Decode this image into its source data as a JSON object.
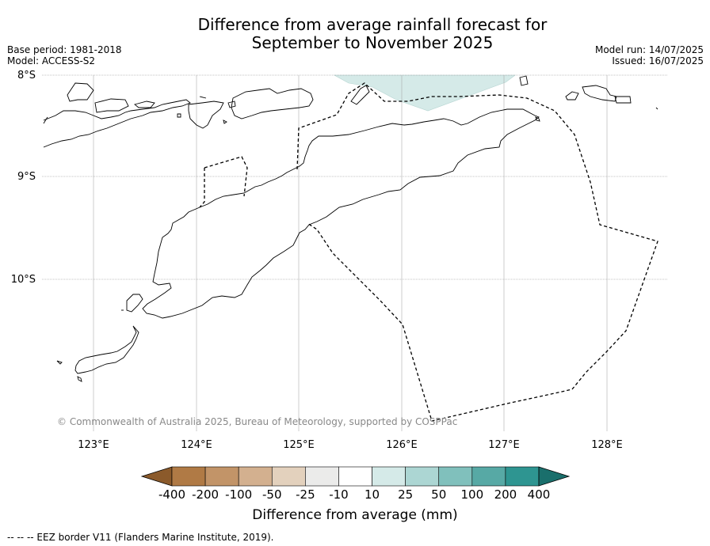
{
  "title": {
    "line1": "Difference from average rainfall forecast for",
    "line2": "September to November 2025"
  },
  "meta": {
    "base_period": "Base period: 1981-2018",
    "model": "Model: ACCESS-S2",
    "model_run": "Model run: 14/07/2025",
    "issued": "Issued: 16/07/2025"
  },
  "map": {
    "lat_labels": [
      "8°S",
      "9°S",
      "10°S"
    ],
    "lon_labels": [
      "123°E",
      "124°E",
      "125°E",
      "126°E",
      "127°E",
      "128°E"
    ],
    "copyright": "© Commonwealth of Australia 2025, Bureau of Meteorology, supported by COSPPac"
  },
  "colorbar": {
    "ticks": [
      "-400",
      "-200",
      "-100",
      "-50",
      "-25",
      "-10",
      "10",
      "25",
      "50",
      "100",
      "200",
      "400"
    ],
    "colors": [
      "#8b5a2b",
      "#b07a45",
      "#c29468",
      "#d3b08f",
      "#e3d1bd",
      "#ebebea",
      "#ffffff",
      "#d5eae8",
      "#acd6d3",
      "#80c0bc",
      "#57a9a5",
      "#2e9591",
      "#1a6f6c"
    ],
    "label": "Difference from average (mm)"
  },
  "footer": "--  --  -- EEZ border V11 (Flanders Marine Institute, 2019)."
}
